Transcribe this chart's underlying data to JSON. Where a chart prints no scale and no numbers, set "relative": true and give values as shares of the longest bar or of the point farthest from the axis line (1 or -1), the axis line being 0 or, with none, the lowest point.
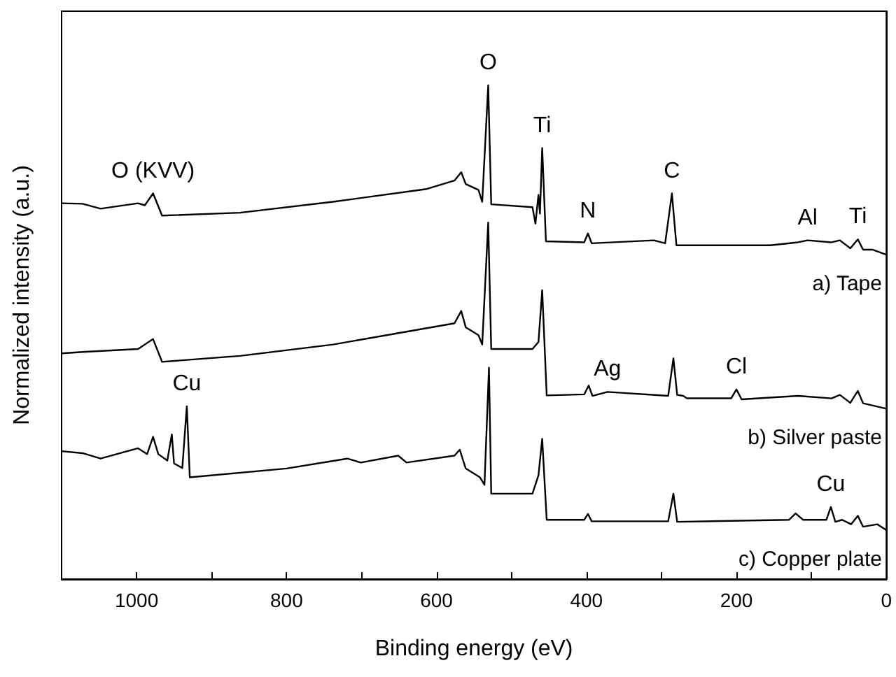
{
  "chart_data": {
    "type": "line",
    "relative": true,
    "xlabel": "Binding energy (eV)",
    "ylabel": "Normalized intensity (a.u.)",
    "xlim": [
      1100,
      0
    ],
    "xticks": [
      {
        "value": 1000,
        "label": "1000"
      },
      {
        "value": 900,
        "label": null
      },
      {
        "value": 800,
        "label": "800"
      },
      {
        "value": 700,
        "label": null
      },
      {
        "value": 600,
        "label": "600"
      },
      {
        "value": 500,
        "label": null
      },
      {
        "value": 400,
        "label": "400"
      },
      {
        "value": 300,
        "label": null
      },
      {
        "value": 200,
        "label": "200"
      },
      {
        "value": 100,
        "label": null
      },
      {
        "value": 0,
        "label": "0"
      }
    ],
    "marker": "none",
    "line_style": "solid",
    "series": [
      {
        "name": "a) Tape",
        "color": "#000000",
        "x": [
          1100,
          1072,
          1048,
          998,
          989,
          978,
          966,
          862,
          738,
          613,
          576,
          567,
          561,
          544,
          539,
          531,
          527,
          472,
          468,
          464,
          462,
          459,
          454,
          403,
          398,
          393,
          310,
          295,
          286,
          280,
          155,
          118,
          105,
          73,
          62,
          48,
          38,
          31,
          18,
          0
        ],
        "values": [
          0.761,
          0.76,
          0.75,
          0.761,
          0.757,
          0.781,
          0.736,
          0.742,
          0.764,
          0.79,
          0.807,
          0.824,
          0.8,
          0.788,
          0.764,
          1.0,
          0.759,
          0.753,
          0.72,
          0.778,
          0.74,
          0.873,
          0.684,
          0.682,
          0.7,
          0.68,
          0.686,
          0.68,
          0.781,
          0.676,
          0.676,
          0.682,
          0.686,
          0.682,
          0.686,
          0.67,
          0.688,
          0.667,
          0.667,
          0.657
        ]
      },
      {
        "name": "b) Silver paste",
        "color": "#000000",
        "x": [
          1100,
          1072,
          998,
          978,
          966,
          862,
          738,
          576,
          567,
          561,
          544,
          539,
          531,
          527,
          472,
          464,
          459,
          453,
          403,
          397,
          392,
          372,
          291,
          284,
          279,
          271,
          266,
          207,
          200,
          193,
          118,
          73,
          62,
          48,
          38,
          31,
          0
        ],
        "values": [
          0.457,
          0.46,
          0.466,
          0.486,
          0.44,
          0.452,
          0.475,
          0.518,
          0.543,
          0.51,
          0.494,
          0.475,
          0.722,
          0.466,
          0.466,
          0.48,
          0.585,
          0.372,
          0.374,
          0.392,
          0.371,
          0.379,
          0.371,
          0.447,
          0.373,
          0.371,
          0.366,
          0.366,
          0.384,
          0.364,
          0.371,
          0.366,
          0.373,
          0.357,
          0.381,
          0.356,
          0.345
        ]
      },
      {
        "name": "c) Copper plate",
        "color": "#000000",
        "x": [
          1100,
          1072,
          1048,
          998,
          986,
          978,
          971,
          959,
          953,
          950,
          939,
          933,
          929,
          800,
          719,
          701,
          651,
          640,
          576,
          569,
          561,
          542,
          536,
          530,
          527,
          472,
          464,
          459,
          453,
          403,
          398,
          393,
          291,
          284,
          279,
          130,
          121,
          111,
          80,
          74,
          68,
          59,
          47,
          38,
          31,
          12,
          0
        ],
        "values": [
          0.259,
          0.255,
          0.244,
          0.265,
          0.253,
          0.288,
          0.253,
          0.24,
          0.293,
          0.234,
          0.225,
          0.35,
          0.206,
          0.224,
          0.244,
          0.236,
          0.25,
          0.236,
          0.25,
          0.262,
          0.224,
          0.206,
          0.191,
          0.428,
          0.173,
          0.173,
          0.21,
          0.284,
          0.12,
          0.12,
          0.132,
          0.117,
          0.117,
          0.173,
          0.116,
          0.12,
          0.133,
          0.12,
          0.12,
          0.146,
          0.116,
          0.12,
          0.111,
          0.128,
          0.106,
          0.111,
          0.099
        ]
      }
    ],
    "annotations": [
      {
        "text": "O (KVV)",
        "x": 978,
        "y": 0.781
      },
      {
        "text": "O",
        "x": 531,
        "y": 1.0
      },
      {
        "text": "Ti",
        "x": 459,
        "y": 0.873
      },
      {
        "text": "N",
        "x": 398,
        "y": 0.7
      },
      {
        "text": "C",
        "x": 286,
        "y": 0.781
      },
      {
        "text": "Al",
        "x": 105,
        "y": 0.686
      },
      {
        "text": "Ti",
        "x": 38,
        "y": 0.688
      },
      {
        "text": "Ag",
        "x": 372,
        "y": 0.379
      },
      {
        "text": "Cl",
        "x": 200,
        "y": 0.384
      },
      {
        "text": "Cu",
        "x": 933,
        "y": 0.35
      },
      {
        "text": "Cu",
        "x": 74,
        "y": 0.146
      }
    ]
  }
}
